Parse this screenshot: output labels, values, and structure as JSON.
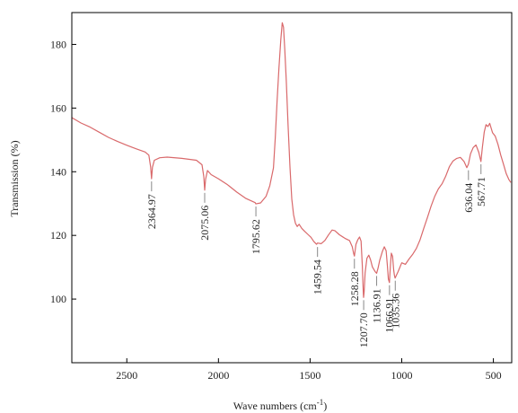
{
  "chart_data": {
    "type": "line",
    "xlabel": "Wave numbers (cm",
    "xlabel_sup": "-1",
    "xlabel_close": ")",
    "ylabel": "Transmission (%)",
    "xlim": [
      2800,
      400
    ],
    "ylim": [
      80,
      190
    ],
    "x_ticks": [
      2500,
      2000,
      1500,
      1000,
      500
    ],
    "y_ticks": [
      100,
      120,
      140,
      160,
      180
    ],
    "grid": false,
    "line_color": "#d9696b",
    "series": [
      {
        "points": [
          [
            2800,
            157
          ],
          [
            2750,
            155.3
          ],
          [
            2700,
            154
          ],
          [
            2650,
            152.4
          ],
          [
            2600,
            150.8
          ],
          [
            2550,
            149.5
          ],
          [
            2500,
            148.3
          ],
          [
            2450,
            147.2
          ],
          [
            2400,
            146.2
          ],
          [
            2380,
            145.2
          ],
          [
            2370,
            141.5
          ],
          [
            2365,
            137.8
          ],
          [
            2360,
            141.4
          ],
          [
            2350,
            143.6
          ],
          [
            2320,
            144.4
          ],
          [
            2280,
            144.6
          ],
          [
            2200,
            144.2
          ],
          [
            2120,
            143.6
          ],
          [
            2090,
            142.2
          ],
          [
            2080,
            138.5
          ],
          [
            2075,
            134.2
          ],
          [
            2070,
            137.6
          ],
          [
            2060,
            140.4
          ],
          [
            2040,
            139.1
          ],
          [
            2000,
            137.8
          ],
          [
            1950,
            135.9
          ],
          [
            1900,
            133.6
          ],
          [
            1850,
            131.6
          ],
          [
            1800,
            130.3
          ],
          [
            1796,
            129.9
          ],
          [
            1770,
            130.2
          ],
          [
            1740,
            132.3
          ],
          [
            1720,
            135.6
          ],
          [
            1700,
            141.2
          ],
          [
            1690,
            150.5
          ],
          [
            1680,
            162.5
          ],
          [
            1670,
            172.5
          ],
          [
            1660,
            181.5
          ],
          [
            1652,
            186.8
          ],
          [
            1645,
            185.4
          ],
          [
            1638,
            178.5
          ],
          [
            1630,
            168.5
          ],
          [
            1620,
            154.5
          ],
          [
            1610,
            141.5
          ],
          [
            1600,
            131.5
          ],
          [
            1590,
            126.5
          ],
          [
            1580,
            123.8
          ],
          [
            1570,
            122.8
          ],
          [
            1560,
            123.5
          ],
          [
            1545,
            122.2
          ],
          [
            1530,
            121.3
          ],
          [
            1510,
            120.2
          ],
          [
            1495,
            119.4
          ],
          [
            1480,
            118.1
          ],
          [
            1465,
            117.2
          ],
          [
            1460,
            117.6
          ],
          [
            1440,
            117.4
          ],
          [
            1420,
            118.4
          ],
          [
            1400,
            120.1
          ],
          [
            1380,
            121.7
          ],
          [
            1365,
            121.5
          ],
          [
            1340,
            120.2
          ],
          [
            1310,
            119.1
          ],
          [
            1285,
            118.4
          ],
          [
            1270,
            116.4
          ],
          [
            1262,
            114.2
          ],
          [
            1258,
            113.5
          ],
          [
            1250,
            117.2
          ],
          [
            1240,
            118.6
          ],
          [
            1230,
            119.5
          ],
          [
            1222,
            118.2
          ],
          [
            1215,
            110.4
          ],
          [
            1210,
            102.5
          ],
          [
            1208,
            100.5
          ],
          [
            1205,
            102.2
          ],
          [
            1200,
            108.2
          ],
          [
            1190,
            112.8
          ],
          [
            1180,
            113.8
          ],
          [
            1170,
            112.3
          ],
          [
            1160,
            110.1
          ],
          [
            1145,
            108.6
          ],
          [
            1137,
            108.1
          ],
          [
            1130,
            109.6
          ],
          [
            1120,
            112.2
          ],
          [
            1105,
            115.1
          ],
          [
            1095,
            116.4
          ],
          [
            1085,
            115.2
          ],
          [
            1078,
            110.2
          ],
          [
            1073,
            106.3
          ],
          [
            1067,
            105.2
          ],
          [
            1062,
            110.2
          ],
          [
            1057,
            114.4
          ],
          [
            1050,
            113.4
          ],
          [
            1044,
            109.2
          ],
          [
            1040,
            107.5
          ],
          [
            1036,
            106.6
          ],
          [
            1030,
            107.4
          ],
          [
            1020,
            108.6
          ],
          [
            1000,
            111.4
          ],
          [
            980,
            110.9
          ],
          [
            960,
            112.6
          ],
          [
            940,
            114.1
          ],
          [
            920,
            115.9
          ],
          [
            900,
            118.6
          ],
          [
            880,
            122.2
          ],
          [
            860,
            125.6
          ],
          [
            840,
            129.2
          ],
          [
            820,
            132.3
          ],
          [
            800,
            134.6
          ],
          [
            780,
            136.2
          ],
          [
            760,
            138.6
          ],
          [
            740,
            141.6
          ],
          [
            720,
            143.4
          ],
          [
            700,
            144.2
          ],
          [
            680,
            144.5
          ],
          [
            660,
            143.2
          ],
          [
            645,
            141.3
          ],
          [
            636,
            142.4
          ],
          [
            625,
            145.6
          ],
          [
            610,
            147.6
          ],
          [
            595,
            148.4
          ],
          [
            580,
            146.1
          ],
          [
            568,
            143.2
          ],
          [
            560,
            147.6
          ],
          [
            550,
            152.5
          ],
          [
            540,
            154.8
          ],
          [
            530,
            154.2
          ],
          [
            520,
            155.2
          ],
          [
            505,
            152.3
          ],
          [
            490,
            151.2
          ],
          [
            475,
            148.6
          ],
          [
            460,
            145.2
          ],
          [
            445,
            142.4
          ],
          [
            430,
            139.4
          ],
          [
            415,
            137.5
          ],
          [
            405,
            136.6
          ]
        ]
      }
    ],
    "annotations": [
      {
        "label": "2364.97",
        "x": 2364.97,
        "y": 137.8
      },
      {
        "label": "2075.06",
        "x": 2075.06,
        "y": 134.2
      },
      {
        "label": "1795.62",
        "x": 1795.62,
        "y": 129.9
      },
      {
        "label": "1459.54",
        "x": 1459.54,
        "y": 117.2
      },
      {
        "label": "1258.28",
        "x": 1258.28,
        "y": 113.5
      },
      {
        "label": "1207.70",
        "x": 1207.7,
        "y": 100.5
      },
      {
        "label": "1136.91",
        "x": 1136.91,
        "y": 108.1
      },
      {
        "label": "1066.91",
        "x": 1066.91,
        "y": 105.2
      },
      {
        "label": "1035.36",
        "x": 1035.36,
        "y": 106.6
      },
      {
        "label": "636.04",
        "x": 636.04,
        "y": 141.3
      },
      {
        "label": "567.71",
        "x": 567.71,
        "y": 143.2
      }
    ]
  }
}
